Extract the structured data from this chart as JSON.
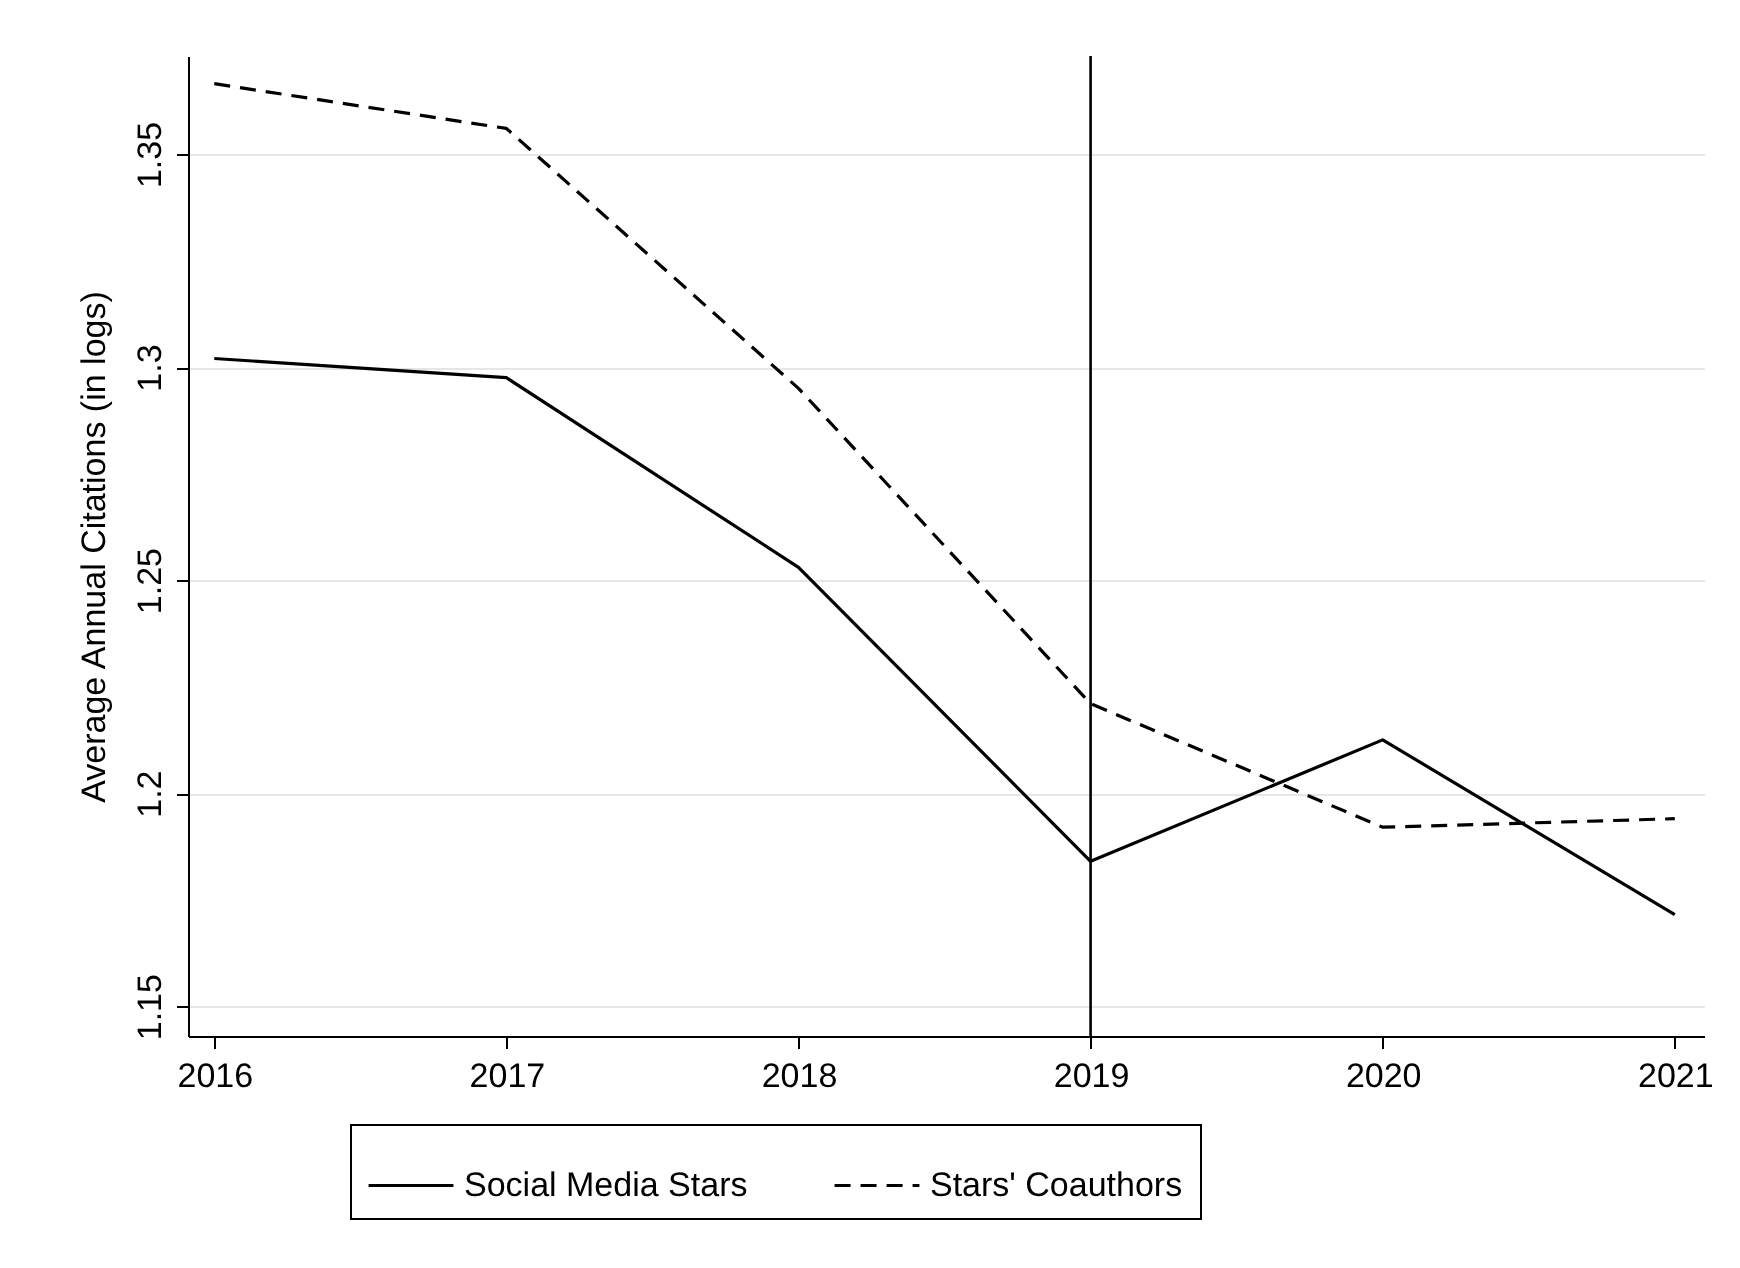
{
  "chart_data": {
    "type": "line",
    "ylabel": "Average Annual Citations (in logs)",
    "x": [
      2016,
      2017,
      2018,
      2019,
      2020,
      2021
    ],
    "series": [
      {
        "name": "Social Media Stars",
        "color": "#000000",
        "line_style": "solid",
        "values": [
          1.302,
          1.2975,
          1.253,
          1.184,
          1.2125,
          1.1715
        ]
      },
      {
        "name": "Stars' Coauthors",
        "color": "#000000",
        "line_style": "dashed",
        "values": [
          1.3665,
          1.356,
          1.295,
          1.221,
          1.192,
          1.194
        ]
      }
    ],
    "xlim": [
      2015.91,
      2021.1
    ],
    "xticks": [
      2016,
      2017,
      2018,
      2019,
      2020,
      2021
    ],
    "ylim": [
      1.143,
      1.373
    ],
    "yticks": [
      1.15,
      1.2,
      1.25,
      1.3,
      1.35
    ],
    "grid": "y",
    "legend": "bottom",
    "marker": "none",
    "ref_lines": [
      {
        "axis": "x",
        "value": 2019,
        "color": "#000000"
      }
    ]
  }
}
